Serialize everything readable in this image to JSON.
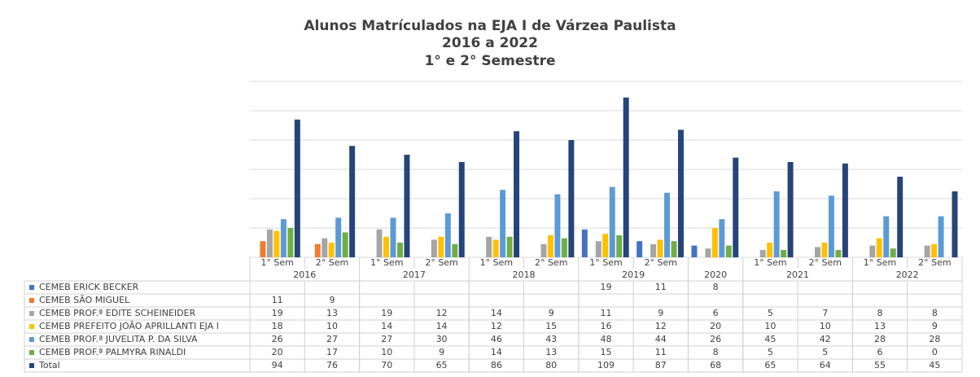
{
  "chart_data": {
    "type": "bar",
    "title": [
      "Alunos Matrículados na EJA I de Várzea Paulista",
      "2016 a 2022",
      "1° e 2° Semestre"
    ],
    "categories": [
      [
        "2016",
        "1° Sem"
      ],
      [
        "2016",
        "2° Sem"
      ],
      [
        "2017",
        "1° Sem"
      ],
      [
        "2017",
        "2° Sem"
      ],
      [
        "2018",
        "1° Sem"
      ],
      [
        "2018",
        "2° Sem"
      ],
      [
        "2019",
        "1° Sem"
      ],
      [
        "2019",
        "2° Sem"
      ],
      [
        "2020",
        null
      ],
      [
        "2021",
        "1° Sem"
      ],
      [
        "2021",
        "2° Sem"
      ],
      [
        "2022",
        "1° Sem"
      ],
      [
        "2022",
        "2° Sem"
      ]
    ],
    "series": [
      {
        "name": "CEMEB ERICK BECKER",
        "color": "#4472c4",
        "values": [
          null,
          null,
          null,
          null,
          null,
          null,
          19,
          11,
          8,
          null,
          null,
          null,
          null
        ]
      },
      {
        "name": "CEMEB SÃO MIGUEL",
        "color": "#ed7d31",
        "values": [
          11,
          9,
          null,
          null,
          null,
          null,
          null,
          null,
          null,
          null,
          null,
          null,
          null
        ]
      },
      {
        "name": "CEMEB PROF.ª EDITE SCHEINEIDER",
        "color": "#a5a5a5",
        "values": [
          19,
          13,
          19,
          12,
          14,
          9,
          11,
          9,
          6,
          5,
          7,
          8,
          8
        ]
      },
      {
        "name": "CEMEB PREFEITO JOÃO APRILLANTI EJA I",
        "color": "#ffc000",
        "values": [
          18,
          10,
          14,
          14,
          12,
          15,
          16,
          12,
          20,
          10,
          10,
          13,
          9
        ]
      },
      {
        "name": "CEMEB PROF.ª JUVELITA P. DA SILVA",
        "color": "#5b9bd5",
        "values": [
          26,
          27,
          27,
          30,
          46,
          43,
          48,
          44,
          26,
          45,
          42,
          28,
          28
        ]
      },
      {
        "name": "CEMEB PROF.ª PALMYRA RINALDI",
        "color": "#70ad47",
        "values": [
          20,
          17,
          10,
          9,
          14,
          13,
          15,
          11,
          8,
          5,
          5,
          6,
          0
        ]
      },
      {
        "name": "Total",
        "color": "#264478",
        "values": [
          94,
          76,
          70,
          65,
          86,
          80,
          109,
          87,
          68,
          65,
          64,
          55,
          45
        ]
      }
    ],
    "ylim": [
      0,
      120
    ],
    "yticks": [
      0,
      20,
      40,
      60,
      80,
      100,
      120
    ],
    "grid": true
  }
}
